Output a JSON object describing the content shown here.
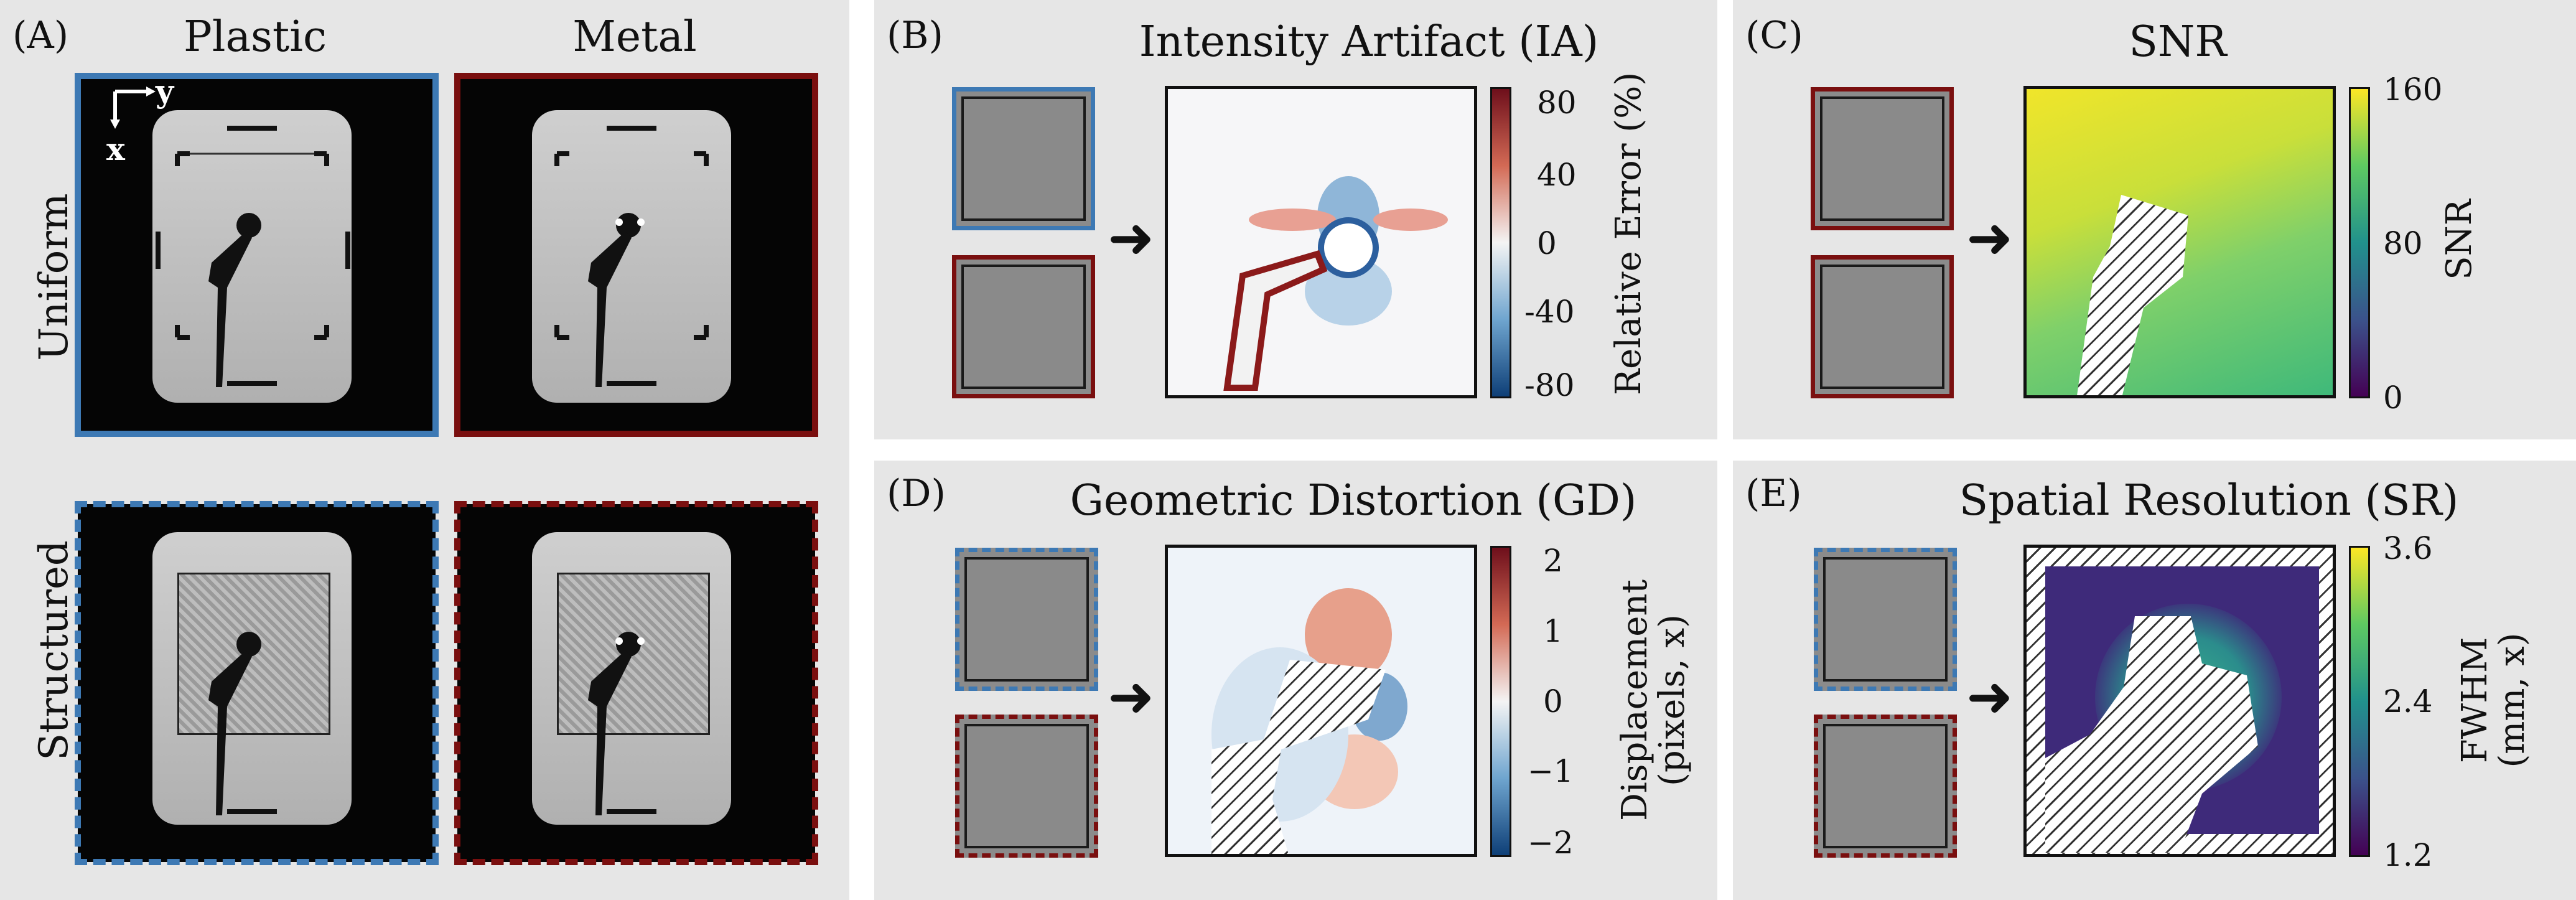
{
  "panelA": {
    "label": "(A)",
    "col_plastic": "Plastic",
    "col_metal": "Metal",
    "row_uniform": "Uniform",
    "row_structured": "Structured",
    "axis_y": "y",
    "axis_x": "x"
  },
  "panelB": {
    "label": "(B)",
    "title": "Intensity Artifact (IA)",
    "cbar_label": "Relative Error (%)",
    "ticks": [
      "80",
      "40",
      "0",
      "-40",
      "-80"
    ]
  },
  "panelC": {
    "label": "(C)",
    "title": "SNR",
    "cbar_label": "SNR",
    "ticks": [
      "160",
      "80",
      "0"
    ]
  },
  "panelD": {
    "label": "(D)",
    "title": "Geometric Distortion (GD)",
    "cbar_label_1": "Displacement",
    "cbar_label_2": "(pixels, x)",
    "ticks": [
      "2",
      "1",
      "0",
      "−1",
      "−2"
    ]
  },
  "panelE": {
    "label": "(E)",
    "title": "Spatial Resolution (SR)",
    "cbar_label_1": "FWHM",
    "cbar_label_2": "(mm, x)",
    "ticks": [
      "3.6",
      "2.4",
      "1.2"
    ]
  },
  "colors": {
    "plastic_frame": "#3d79b4",
    "metal_frame": "#7a0f0f",
    "panel_bg": "#e6e6e6"
  }
}
